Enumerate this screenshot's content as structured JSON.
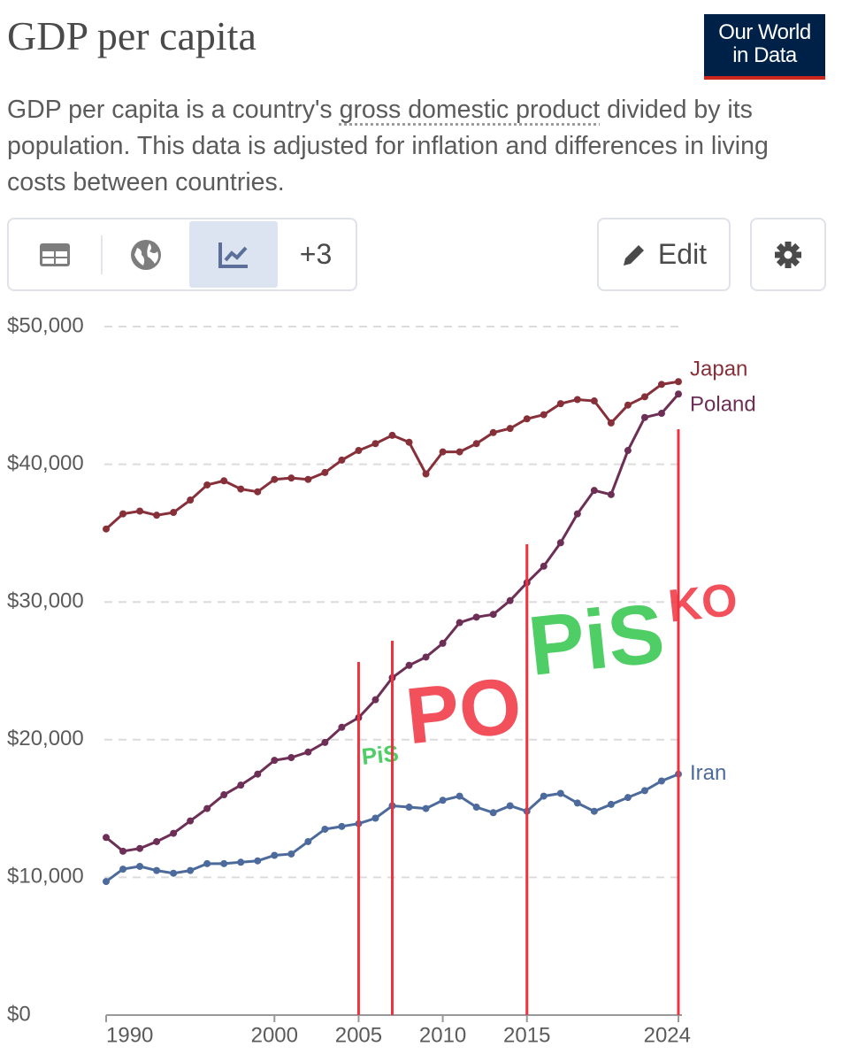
{
  "logo": [
    "Our World",
    "in Data"
  ],
  "toolbar": {
    "more": "+3",
    "edit": "Edit"
  },
  "chart_data": {
    "type": "line",
    "title": "GDP per capita",
    "subtitle": [
      "GDP per capita is a country's ",
      "gross domestic product",
      " divided by its population. This data is adjusted for inflation and differences in living costs between countries."
    ],
    "x": [
      1990,
      1991,
      1992,
      1993,
      1994,
      1995,
      1996,
      1997,
      1998,
      1999,
      2000,
      2001,
      2002,
      2003,
      2004,
      2005,
      2006,
      2007,
      2008,
      2009,
      2010,
      2011,
      2012,
      2013,
      2014,
      2015,
      2016,
      2017,
      2018,
      2019,
      2020,
      2021,
      2022,
      2023,
      2024
    ],
    "series": [
      {
        "name": "Japan",
        "color": "#883039",
        "values": [
          35300,
          36400,
          36600,
          36300,
          36500,
          37400,
          38500,
          38800,
          38200,
          38000,
          38900,
          39000,
          38900,
          39400,
          40300,
          41000,
          41500,
          42100,
          41600,
          39300,
          40900,
          40900,
          41500,
          42300,
          42600,
          43300,
          43600,
          44400,
          44700,
          44600,
          43000,
          44300,
          44900,
          45800,
          46000
        ]
      },
      {
        "name": "Poland",
        "color": "#6d2f55",
        "values": [
          12900,
          11900,
          12100,
          12600,
          13200,
          14100,
          15000,
          16000,
          16700,
          17500,
          18500,
          18700,
          19100,
          19800,
          20900,
          21600,
          22900,
          24500,
          25400,
          26000,
          27000,
          28500,
          28900,
          29100,
          30100,
          31400,
          32600,
          34300,
          36400,
          38100,
          37800,
          41000,
          43400,
          43700,
          45100
        ]
      },
      {
        "name": "Iran",
        "color": "#4c6a9c",
        "values": [
          9700,
          10600,
          10800,
          10500,
          10300,
          10500,
          11000,
          11000,
          11100,
          11200,
          11600,
          11700,
          12600,
          13500,
          13700,
          13900,
          14300,
          15200,
          15100,
          15000,
          15600,
          15900,
          15100,
          14700,
          15200,
          14800,
          15900,
          16100,
          15400,
          14800,
          15300,
          15800,
          16300,
          17000,
          17500
        ]
      }
    ],
    "xlim": [
      1990,
      2024
    ],
    "xticks": [
      1990,
      2000,
      2005,
      2010,
      2015,
      2024
    ],
    "ylim": [
      0,
      50000
    ],
    "yticks": [
      {
        "value": 0,
        "label": "$0"
      },
      {
        "value": 10000,
        "label": "$10,000"
      },
      {
        "value": 20000,
        "label": "$20,000"
      },
      {
        "value": 30000,
        "label": "$30,000"
      },
      {
        "value": 40000,
        "label": "$40,000"
      },
      {
        "value": 50000,
        "label": "$50,000"
      }
    ],
    "grid": true,
    "annotations": [
      {
        "text": "PiS",
        "x": 2005,
        "color": "#2fc64a"
      },
      {
        "text": "PO",
        "x": 2007,
        "color": "#f0323f"
      },
      {
        "text": "PiS",
        "x": 2015,
        "color": "#2fc64a"
      },
      {
        "text": "KO",
        "x": 2024,
        "color": "#f0323f"
      }
    ],
    "annotation_line_color": "#f0323f"
  }
}
